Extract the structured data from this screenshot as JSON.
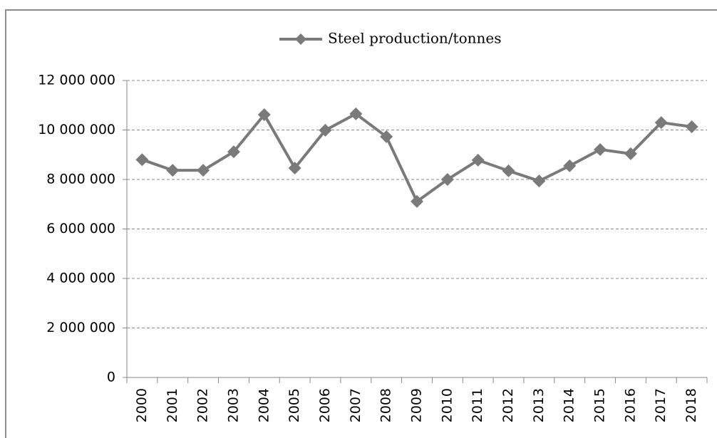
{
  "chart_data": {
    "type": "line",
    "categories": [
      "2000",
      "2001",
      "2002",
      "2003",
      "2004",
      "2005",
      "2006",
      "2007",
      "2008",
      "2009",
      "2010",
      "2011",
      "2012",
      "2013",
      "2014",
      "2015",
      "2016",
      "2017",
      "2018"
    ],
    "series": [
      {
        "name": "Steel production/tonnes",
        "color": "#7a7a7a",
        "values": [
          8800000,
          8370000,
          8370000,
          9120000,
          10620000,
          8460000,
          9990000,
          10650000,
          9730000,
          7110000,
          8000000,
          8780000,
          8350000,
          7940000,
          8550000,
          9210000,
          9040000,
          10300000,
          10130000
        ]
      }
    ],
    "ylim": [
      0,
      12000000
    ],
    "yticks": [
      0,
      {
        "value": 2000000,
        "label": "2 000 000"
      },
      {
        "value": 4000000,
        "label": "4 000 000"
      },
      {
        "value": 6000000,
        "label": "6 000 000"
      },
      {
        "value": 8000000,
        "label": "8 000 000"
      },
      {
        "value": 10000000,
        "label": "10 000 000"
      },
      {
        "value": 12000000,
        "label": "12 000 000"
      }
    ],
    "grid": true,
    "legend": "top"
  }
}
